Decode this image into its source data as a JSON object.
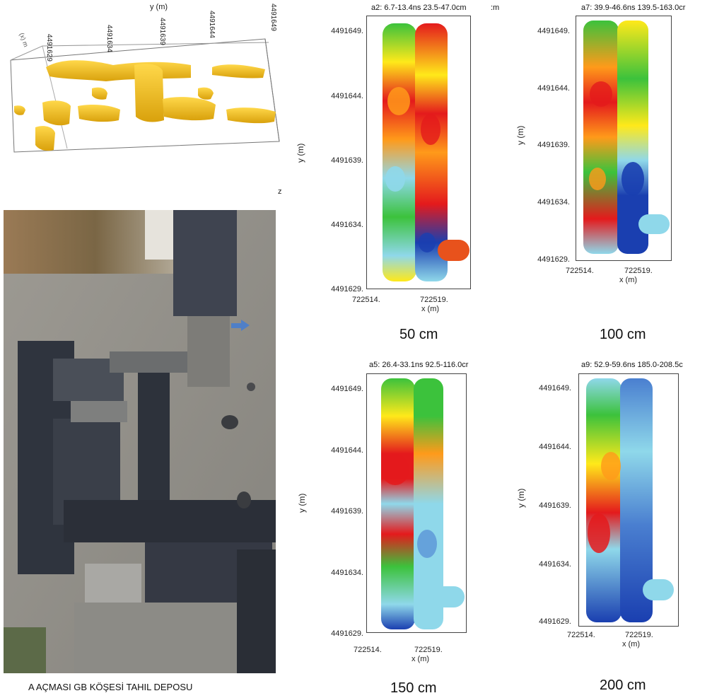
{
  "volume3d": {
    "axis_label": "y (m)",
    "tick_labels": [
      "4491629",
      "4491634",
      "4491639",
      "4491644",
      "4491649"
    ],
    "x_axis_text": "(x) m",
    "z_label": "z"
  },
  "photo": {
    "caption": "A AÇMASI GB KÖŞESİ TAHIL DEPOSU",
    "arrow_icon": "right-arrow-icon"
  },
  "panels": [
    {
      "id": "a2",
      "header": "a2:  6.7-13.4ns   23.5-47.0cm",
      "depth_label": "50 cm",
      "y_ticks": [
        "4491649.",
        "4491644.",
        "4491639.",
        "4491634.",
        "4491629."
      ],
      "x_ticks": [
        "722514.",
        "722519."
      ],
      "xlabel": "x (m)",
      "ylabel": "y (m)"
    },
    {
      "id": "a7",
      "header": "a7:  39.9-46.6ns   139.5-163.0cr",
      "depth_label": "100 cm",
      "y_ticks": [
        "4491649.",
        "4491644.",
        "4491639.",
        "4491634.",
        "4491629."
      ],
      "x_ticks": [
        "722514.",
        "722519."
      ],
      "xlabel": "x (m)",
      "ylabel": "y (m)"
    },
    {
      "id": "a5",
      "header": "a5:  26.4-33.1ns   92.5-116.0cr",
      "depth_label": "150 cm",
      "y_ticks": [
        "4491649.",
        "4491644.",
        "4491639.",
        "4491634.",
        "4491629."
      ],
      "x_ticks": [
        "722514.",
        "722519."
      ],
      "xlabel": "x (m)",
      "ylabel": "y (m)"
    },
    {
      "id": "a9",
      "header": "a9:  52.9-59.6ns   185.0-208.5c",
      "depth_label": "200 cm",
      "y_ticks": [
        "4491649.",
        "4491644.",
        "4491639.",
        "4491634.",
        "4491629."
      ],
      "x_ticks": [
        "722514.",
        "722519."
      ],
      "xlabel": "x (m)",
      "ylabel": "y (m)"
    }
  ],
  "colors": {
    "amplitude_high": "#e41a1c",
    "amplitude_mid_high": "#ff9a1a",
    "amplitude_mid": "#ffe91a",
    "amplitude_mid_low": "#3cc23c",
    "amplitude_low": "#8fd8ea",
    "amplitude_lowest": "#1a3fb0",
    "isosurface": "#f2c21a"
  }
}
